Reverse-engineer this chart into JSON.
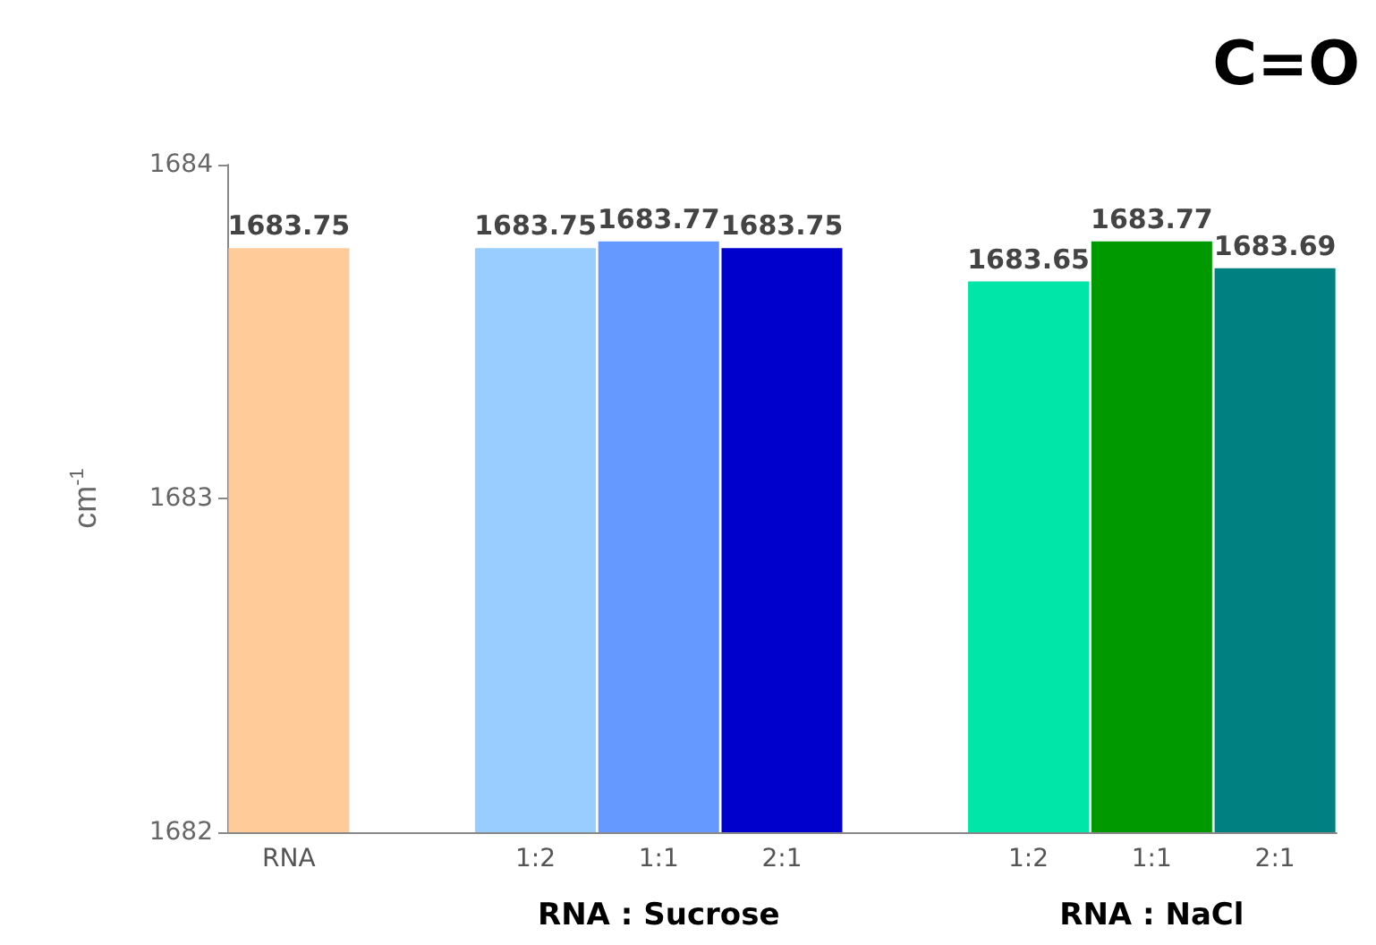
{
  "chart_data": {
    "type": "bar",
    "title": "C=O",
    "ylabel": "cm$^{-1}$",
    "categories": [
      "RNA",
      null,
      "1:2",
      "1:1",
      "2:1",
      null,
      "1:2",
      "1:1",
      "2:1"
    ],
    "values": [
      1683.75,
      null,
      1683.75,
      1683.77,
      1683.75,
      null,
      1683.65,
      1683.77,
      1683.69
    ],
    "colors": [
      "#ffcc99",
      null,
      "#99ccff",
      "#6699ff",
      "#0000cc",
      null,
      "#00e6a8",
      "#009900",
      "#008080"
    ],
    "ylim": [
      1682,
      1684
    ],
    "yticks": [
      1682,
      1683,
      1684
    ],
    "grid": false,
    "data_labels": true,
    "annotations": [
      "RNA : Sucrose",
      "RNA : NaCl"
    ]
  }
}
